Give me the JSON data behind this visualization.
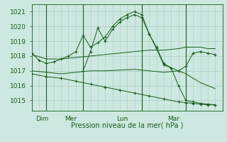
{
  "bg_color": "#cce8e0",
  "line_color": "#1a5c1a",
  "grid_color": "#a8ccc4",
  "xlabel": "Pression niveau de la mer( hPa )",
  "ylim": [
    1014.3,
    1021.5
  ],
  "yticks": [
    1015,
    1016,
    1017,
    1018,
    1019,
    1020,
    1021
  ],
  "day_labels": [
    "Dim",
    "Mer",
    "Lun",
    "Mar"
  ],
  "day_positions": [
    0.5,
    4.5,
    11.5,
    18.5
  ],
  "vline_positions": [
    2,
    7,
    15,
    21
  ],
  "xlim": [
    0,
    26
  ],
  "lines": [
    {
      "x": [
        0,
        1,
        2,
        3,
        4,
        5,
        6,
        7,
        8,
        9,
        10,
        11,
        12,
        13,
        14,
        15,
        16,
        17,
        18,
        19,
        20,
        21,
        22,
        23,
        24,
        25
      ],
      "y": [
        1018.2,
        1017.7,
        1017.5,
        1017.6,
        1017.8,
        1018.0,
        1018.3,
        1019.4,
        1018.6,
        1018.9,
        1019.3,
        1020.0,
        1020.5,
        1020.8,
        1021.0,
        1020.8,
        1019.5,
        1018.6,
        1017.5,
        1017.2,
        1017.0,
        1017.3,
        1018.2,
        1018.3,
        1018.2,
        1018.1
      ],
      "markers": true
    },
    {
      "x": [
        0,
        2,
        4,
        6,
        8,
        10,
        12,
        14,
        16,
        18,
        20,
        21,
        22,
        23,
        24,
        25
      ],
      "y": [
        1018.1,
        1017.8,
        1017.8,
        1017.9,
        1018.0,
        1018.1,
        1018.2,
        1018.3,
        1018.4,
        1018.4,
        1018.5,
        1018.6,
        1018.6,
        1018.6,
        1018.5,
        1018.5
      ],
      "markers": false
    },
    {
      "x": [
        0,
        2,
        4,
        6,
        8,
        10,
        12,
        14,
        16,
        18,
        20,
        21,
        22,
        23,
        24,
        25
      ],
      "y": [
        1017.0,
        1016.9,
        1016.8,
        1016.9,
        1017.0,
        1017.0,
        1017.05,
        1017.1,
        1017.0,
        1016.9,
        1017.0,
        1016.8,
        1016.5,
        1016.2,
        1016.0,
        1015.8
      ],
      "markers": false
    },
    {
      "x": [
        0,
        2,
        4,
        6,
        8,
        10,
        12,
        14,
        16,
        18,
        20,
        21,
        22,
        23,
        24,
        25
      ],
      "y": [
        1016.8,
        1016.6,
        1016.5,
        1016.3,
        1016.1,
        1015.9,
        1015.7,
        1015.5,
        1015.3,
        1015.1,
        1014.9,
        1014.85,
        1014.8,
        1014.75,
        1014.7,
        1014.7
      ],
      "markers": true
    },
    {
      "x": [
        7,
        8,
        9,
        10,
        11,
        12,
        13,
        14,
        15,
        16,
        17,
        18,
        19,
        20,
        21,
        22,
        23,
        24,
        25
      ],
      "y": [
        1017.0,
        1018.3,
        1019.9,
        1019.0,
        1019.8,
        1020.3,
        1020.6,
        1020.8,
        1020.6,
        1019.5,
        1018.5,
        1017.4,
        1017.2,
        1016.0,
        1015.0,
        1014.9,
        1014.8,
        1014.75,
        1014.7
      ],
      "markers": true
    }
  ]
}
